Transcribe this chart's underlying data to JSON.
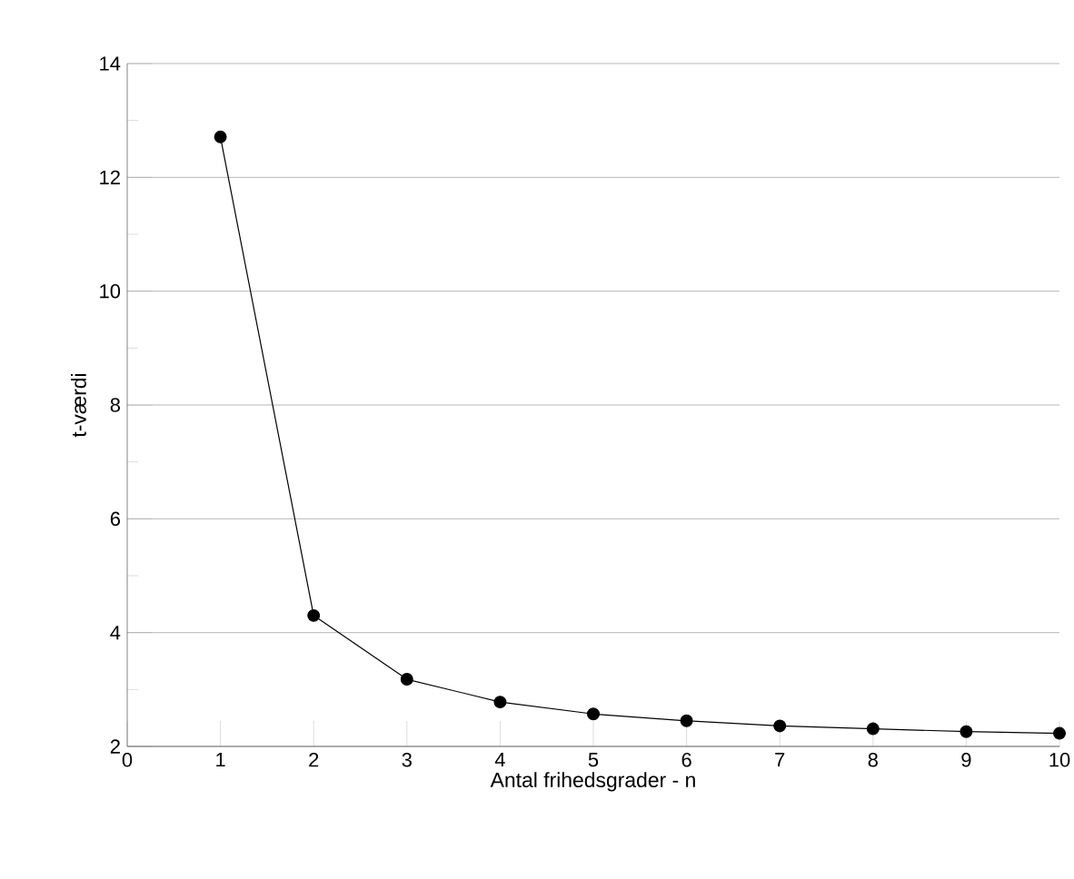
{
  "chart_data": {
    "type": "line",
    "xlabel": "Antal frihedsgrader - n",
    "ylabel": "t-værdi",
    "x": [
      1,
      2,
      3,
      4,
      5,
      6,
      7,
      8,
      9,
      10
    ],
    "series": [
      {
        "color": "#000000",
        "values": [
          12.71,
          4.3,
          3.18,
          2.78,
          2.57,
          2.45,
          2.36,
          2.31,
          2.26,
          2.23
        ]
      }
    ],
    "xlim": [
      0,
      10
    ],
    "ylim": [
      2,
      14
    ],
    "xticks": [
      0,
      1,
      2,
      3,
      4,
      5,
      6,
      7,
      8,
      9,
      10
    ],
    "yticks": [
      2,
      4,
      6,
      8,
      10,
      12,
      14
    ],
    "grid": "y",
    "marker": "circle",
    "line_style": "solid"
  }
}
